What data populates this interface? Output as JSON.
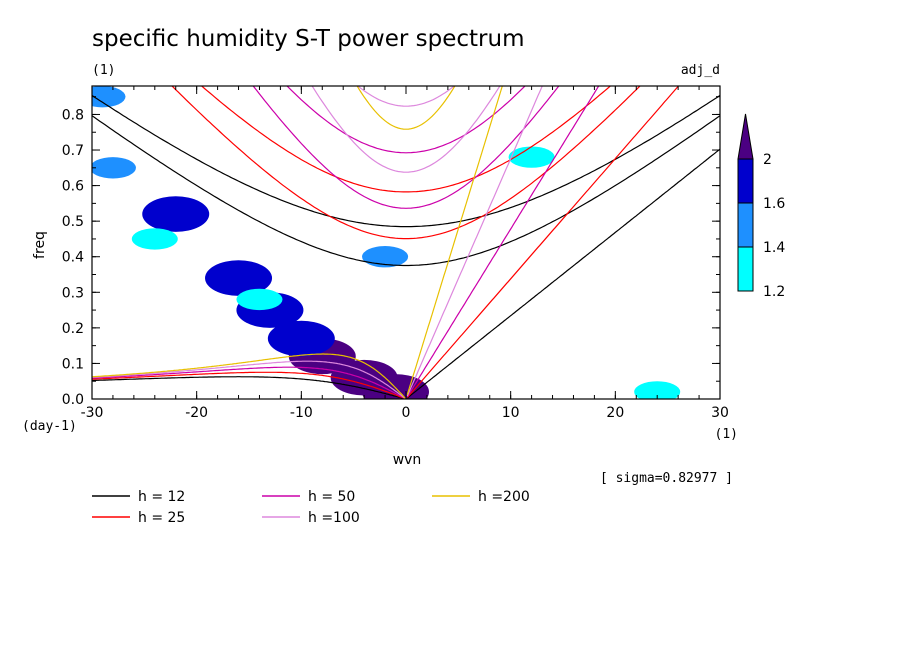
{
  "chart_data": {
    "type": "heatmap",
    "title": "specific humidity S-T power spectrum",
    "subtitle": "(1)",
    "right_tag": "adj_d",
    "xlabel": "wvn",
    "ylabel": "freq",
    "x_unit": "(1)",
    "y_unit": "(day-1)",
    "xlim": [
      -30,
      30
    ],
    "ylim": [
      0,
      0.88
    ],
    "x_ticks": [
      -30,
      -20,
      -10,
      0,
      10,
      20,
      30
    ],
    "x_tick_labels": [
      "-30",
      "-20",
      "-10",
      "0",
      "10",
      "20",
      "30"
    ],
    "y_ticks": [
      0.0,
      0.1,
      0.2,
      0.3,
      0.4,
      0.5,
      0.6,
      0.7,
      0.8
    ],
    "y_tick_labels": [
      "0.0",
      "0.1",
      "0.2",
      "0.3",
      "0.4",
      "0.5",
      "0.6",
      "0.7",
      "0.8"
    ],
    "colorbar": {
      "levels": [
        1.2,
        1.4,
        1.6,
        2
      ],
      "level_labels": [
        "1.2",
        "1.4",
        "1.6",
        "2"
      ],
      "colors": [
        "#00ffff",
        "#1e90ff",
        "#0000cd",
        "#4b0082"
      ]
    },
    "sigma_text": "[ sigma=0.82977 ]",
    "legend": [
      {
        "label": "h = 12",
        "color": "#000000",
        "h": 12
      },
      {
        "label": "h = 25",
        "color": "#ff0000",
        "h": 25
      },
      {
        "label": "h = 50",
        "color": "#cc00aa",
        "h": 50
      },
      {
        "label": "h =100",
        "color": "#dd88dd",
        "h": 100
      },
      {
        "label": "h =200",
        "color": "#e8c000",
        "h": 200
      }
    ],
    "significant_regions": [
      {
        "x": -8,
        "y": 0.12,
        "level": 2
      },
      {
        "x": -4,
        "y": 0.06,
        "level": 2
      },
      {
        "x": -1,
        "y": 0.02,
        "level": 2
      },
      {
        "x": -10,
        "y": 0.17,
        "level": 1.6
      },
      {
        "x": -13,
        "y": 0.25,
        "level": 1.6
      },
      {
        "x": -16,
        "y": 0.34,
        "level": 1.6
      },
      {
        "x": -22,
        "y": 0.52,
        "level": 1.6
      },
      {
        "x": -28,
        "y": 0.65,
        "level": 1.4
      },
      {
        "x": -2,
        "y": 0.4,
        "level": 1.4
      },
      {
        "x": -29,
        "y": 0.85,
        "level": 1.4
      },
      {
        "x": -24,
        "y": 0.45,
        "level": 1.2
      },
      {
        "x": -14,
        "y": 0.28,
        "level": 1.2
      },
      {
        "x": 12,
        "y": 0.68,
        "level": 1.2
      },
      {
        "x": 24,
        "y": 0.02,
        "level": 1.2
      }
    ]
  }
}
